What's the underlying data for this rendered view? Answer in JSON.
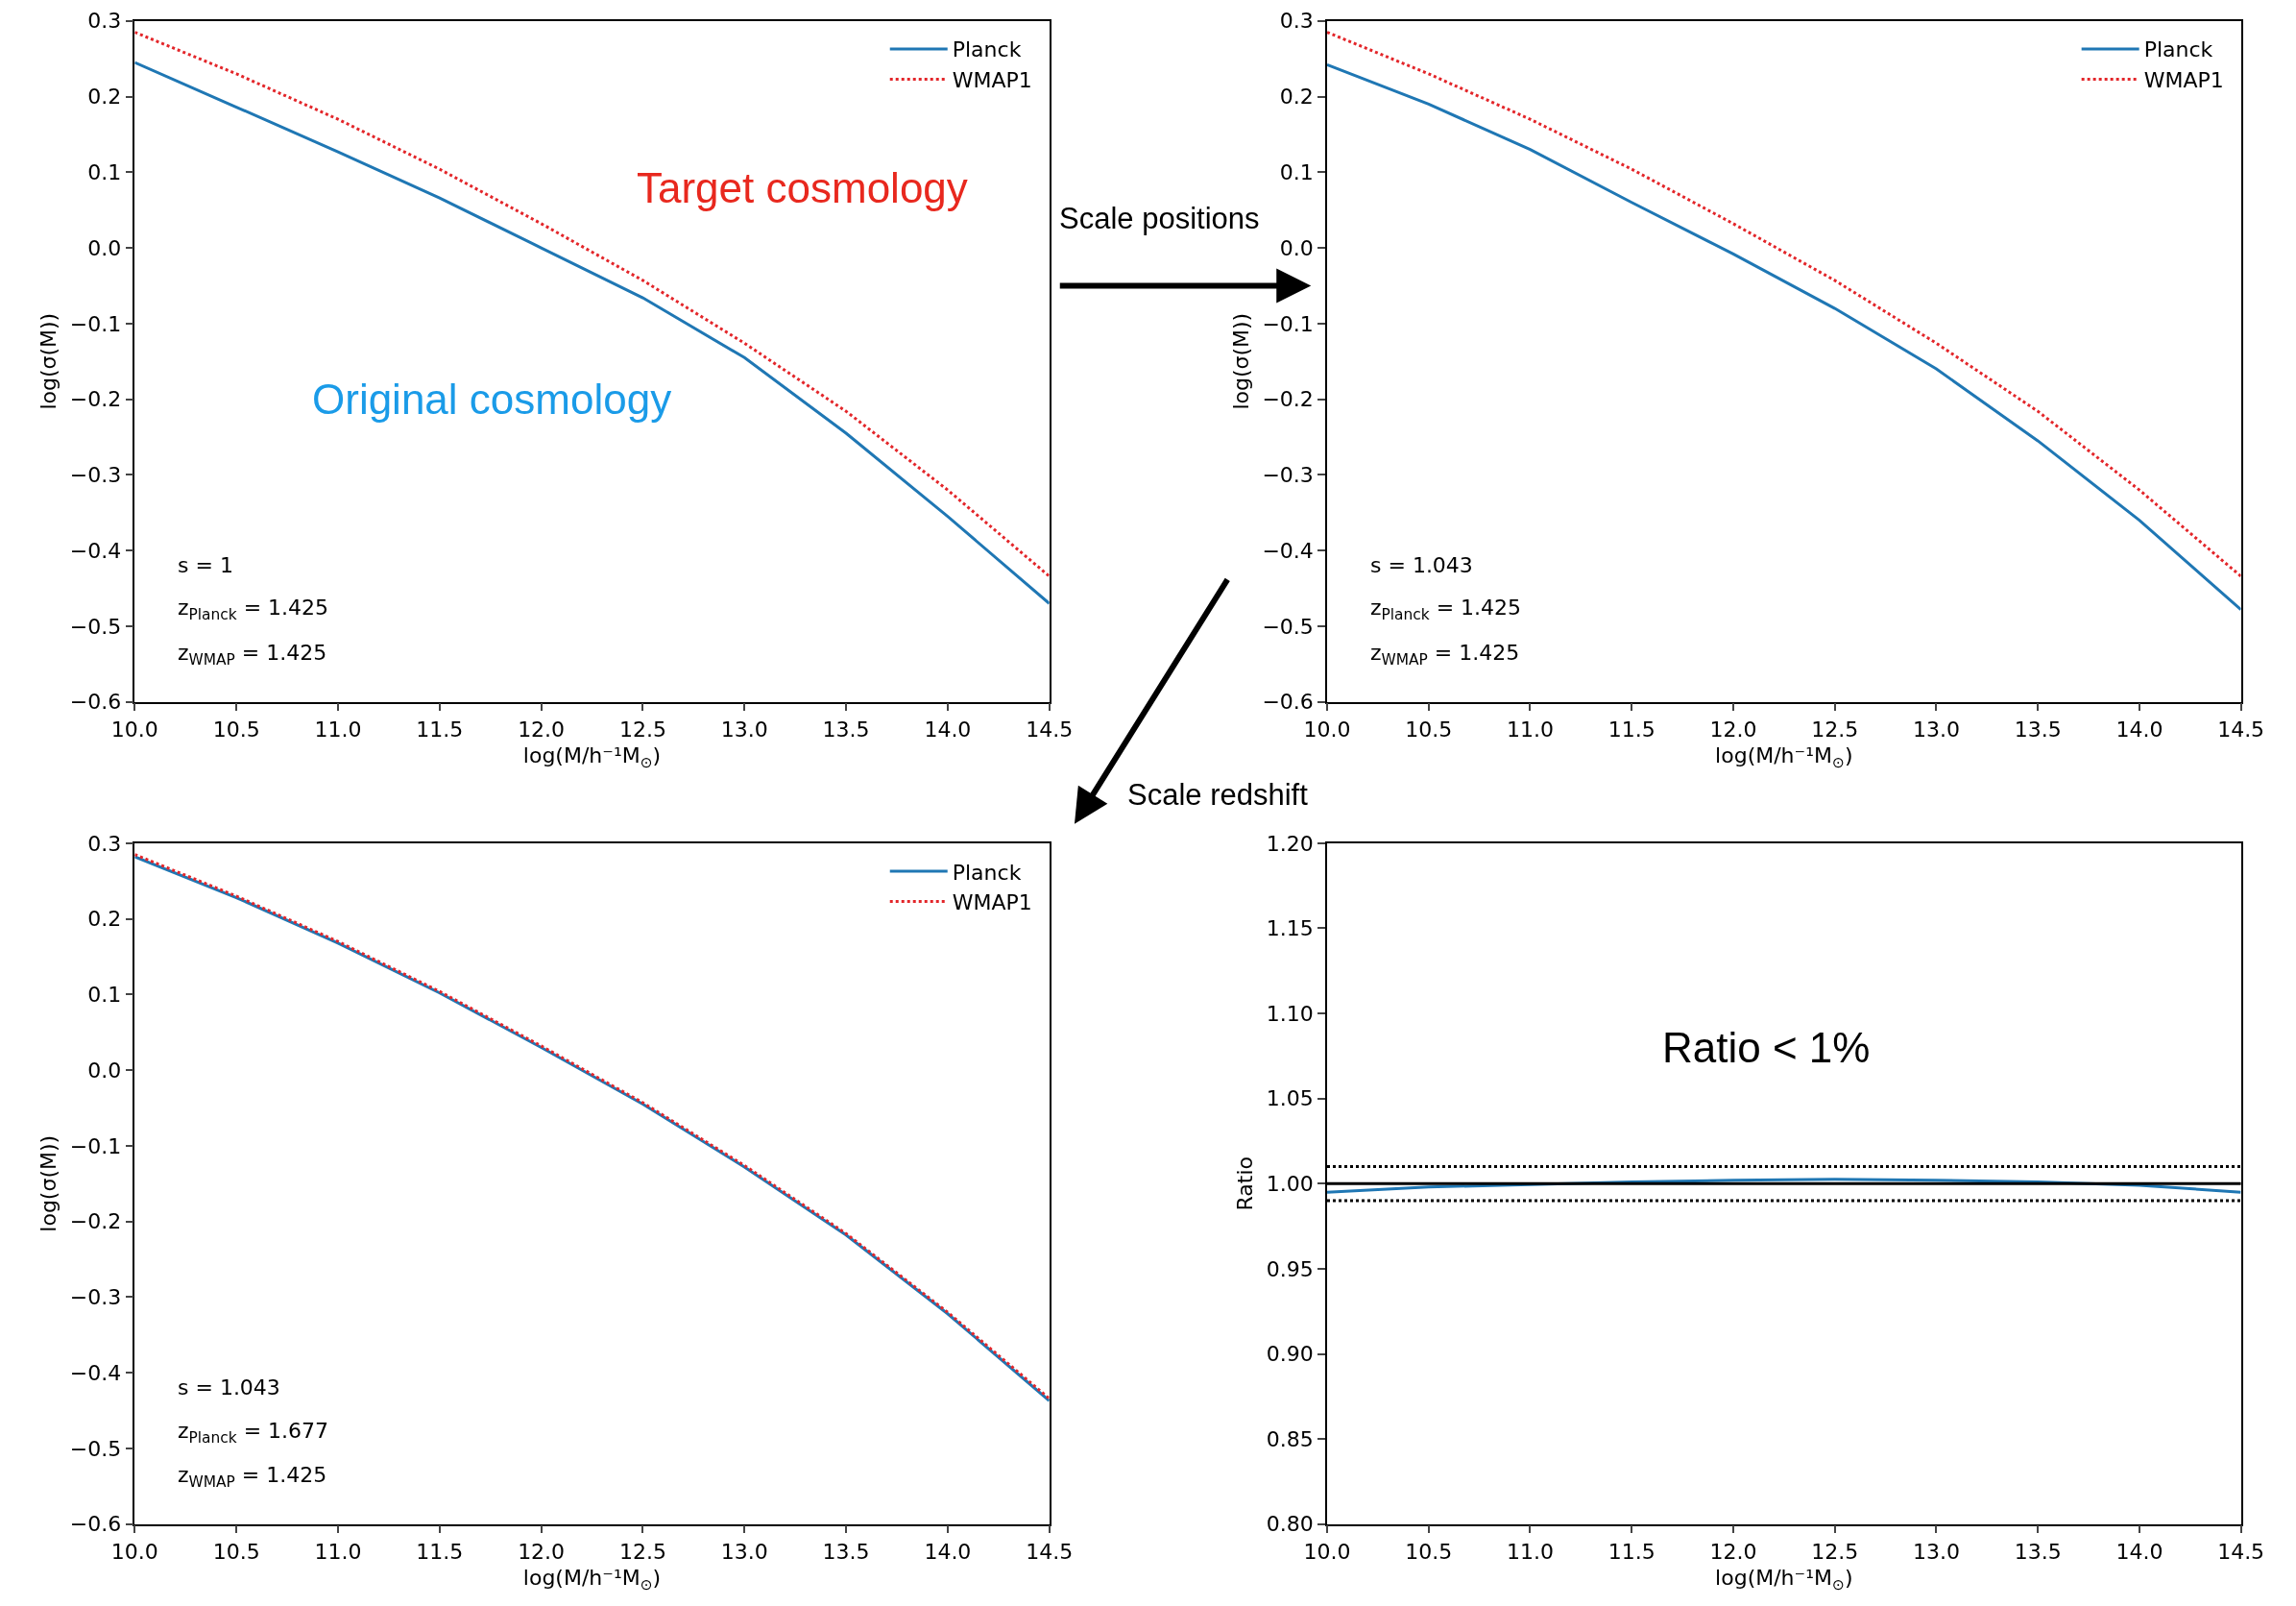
{
  "chart_data": [
    {
      "type": "line",
      "xlabel": "log(M/h⁻¹M$_{⊙}$)",
      "ylabel": "log(σ(M))",
      "x": [
        10.0,
        10.5,
        11.0,
        11.5,
        12.0,
        12.5,
        13.0,
        13.5,
        14.0,
        14.5
      ],
      "series": [
        {
          "name": "Planck",
          "color": "#1f77b4",
          "line_style": "solid",
          "values": [
            0.245,
            0.186,
            0.127,
            0.066,
            0.0,
            -0.066,
            -0.145,
            -0.245,
            -0.355,
            -0.47
          ]
        },
        {
          "name": "WMAP1",
          "color": "#e3262a",
          "line_style": "dotted",
          "values": [
            0.285,
            0.23,
            0.17,
            0.104,
            0.032,
            -0.043,
            -0.126,
            -0.216,
            -0.32,
            -0.434
          ]
        }
      ],
      "xlim": [
        10.0,
        14.5
      ],
      "ylim": [
        -0.6,
        0.3
      ],
      "xticks": [
        {
          "value": 10,
          "label": "10.0"
        },
        10.5,
        {
          "value": 11,
          "label": "11.0"
        },
        11.5,
        {
          "value": 12,
          "label": "12.0"
        },
        12.5,
        {
          "value": 13,
          "label": "13.0"
        },
        13.5,
        {
          "value": 14,
          "label": "14.0"
        },
        14.5
      ],
      "yticks": [
        {
          "value": -0.6,
          "label": "−0.6"
        },
        {
          "value": -0.5,
          "label": "−0.5"
        },
        {
          "value": -0.4,
          "label": "−0.4"
        },
        {
          "value": -0.3,
          "label": "−0.3"
        },
        {
          "value": -0.2,
          "label": "−0.2"
        },
        {
          "value": -0.1,
          "label": "−0.1"
        },
        {
          "value": 0,
          "label": "0.0"
        },
        0.1,
        0.2,
        0.3
      ],
      "grid": false,
      "legend": "top right",
      "annotations": [
        "s = 1",
        "z$_{Planck}$ = 1.425",
        "z$_{WMAP}$ = 1.425",
        "Target cosmology",
        "Original cosmology",
        "Scale positions"
      ]
    },
    {
      "type": "line",
      "xlabel": "log(M/h⁻¹M$_{⊙}$)",
      "ylabel": "log(σ(M))",
      "x": [
        10.0,
        10.5,
        11.0,
        11.5,
        12.0,
        12.5,
        13.0,
        13.5,
        14.0,
        14.5
      ],
      "series": [
        {
          "name": "Planck",
          "color": "#1f77b4",
          "line_style": "solid",
          "values": [
            0.242,
            0.19,
            0.13,
            0.06,
            -0.008,
            -0.08,
            -0.16,
            -0.255,
            -0.36,
            -0.478
          ]
        },
        {
          "name": "WMAP1",
          "color": "#e3262a",
          "line_style": "dotted",
          "values": [
            0.285,
            0.23,
            0.17,
            0.104,
            0.032,
            -0.043,
            -0.126,
            -0.216,
            -0.32,
            -0.434
          ]
        }
      ],
      "xlim": [
        10.0,
        14.5
      ],
      "ylim": [
        -0.6,
        0.3
      ],
      "xticks": [
        {
          "value": 10,
          "label": "10.0"
        },
        10.5,
        {
          "value": 11,
          "label": "11.0"
        },
        11.5,
        {
          "value": 12,
          "label": "12.0"
        },
        12.5,
        {
          "value": 13,
          "label": "13.0"
        },
        13.5,
        {
          "value": 14,
          "label": "14.0"
        },
        14.5
      ],
      "yticks": [
        {
          "value": -0.6,
          "label": "−0.6"
        },
        {
          "value": -0.5,
          "label": "−0.5"
        },
        {
          "value": -0.4,
          "label": "−0.4"
        },
        {
          "value": -0.3,
          "label": "−0.3"
        },
        {
          "value": -0.2,
          "label": "−0.2"
        },
        {
          "value": -0.1,
          "label": "−0.1"
        },
        {
          "value": 0,
          "label": "0.0"
        },
        0.1,
        0.2,
        0.3
      ],
      "grid": false,
      "legend": "top right",
      "annotations": [
        "s = 1.043",
        "z$_{Planck}$ = 1.425",
        "z$_{WMAP}$ = 1.425",
        "Scale redshift"
      ]
    },
    {
      "type": "line",
      "xlabel": "log(M/h⁻¹M$_{⊙}$)",
      "ylabel": "log(σ(M))",
      "x": [
        10.0,
        10.5,
        11.0,
        11.5,
        12.0,
        12.5,
        13.0,
        13.5,
        14.0,
        14.5
      ],
      "series": [
        {
          "name": "Planck",
          "color": "#1f77b4",
          "line_style": "solid",
          "values": [
            0.282,
            0.228,
            0.168,
            0.102,
            0.03,
            -0.045,
            -0.128,
            -0.218,
            -0.322,
            -0.437
          ]
        },
        {
          "name": "WMAP1",
          "color": "#e3262a",
          "line_style": "dotted",
          "values": [
            0.285,
            0.23,
            0.17,
            0.104,
            0.032,
            -0.043,
            -0.126,
            -0.216,
            -0.32,
            -0.434
          ]
        }
      ],
      "xlim": [
        10.0,
        14.5
      ],
      "ylim": [
        -0.6,
        0.3
      ],
      "xticks": [
        {
          "value": 10,
          "label": "10.0"
        },
        10.5,
        {
          "value": 11,
          "label": "11.0"
        },
        11.5,
        {
          "value": 12,
          "label": "12.0"
        },
        12.5,
        {
          "value": 13,
          "label": "13.0"
        },
        13.5,
        {
          "value": 14,
          "label": "14.0"
        },
        14.5
      ],
      "yticks": [
        {
          "value": -0.6,
          "label": "−0.6"
        },
        {
          "value": -0.5,
          "label": "−0.5"
        },
        {
          "value": -0.4,
          "label": "−0.4"
        },
        {
          "value": -0.3,
          "label": "−0.3"
        },
        {
          "value": -0.2,
          "label": "−0.2"
        },
        {
          "value": -0.1,
          "label": "−0.1"
        },
        {
          "value": 0,
          "label": "0.0"
        },
        0.1,
        0.2,
        0.3
      ],
      "grid": false,
      "legend": "top right",
      "annotations": [
        "s = 1.043",
        "z$_{Planck}$ = 1.677",
        "z$_{WMAP}$ = 1.425"
      ]
    },
    {
      "type": "line",
      "xlabel": "log(M/h⁻¹M$_{⊙}$)",
      "ylabel": "Ratio",
      "x": [
        10.0,
        10.5,
        11.0,
        11.5,
        12.0,
        12.5,
        13.0,
        13.5,
        14.0,
        14.5
      ],
      "series": [
        {
          "color": "#1f77b4",
          "line_style": "solid",
          "values": [
            0.995,
            0.998,
            0.9995,
            1.001,
            1.002,
            1.0025,
            1.002,
            1.001,
            0.999,
            0.995
          ]
        }
      ],
      "ref_lines": [
        {
          "axis": "y",
          "value": 1.0,
          "color": "#000000",
          "line_style": "solid"
        },
        {
          "axis": "y",
          "value": 1.01,
          "color": "#000000",
          "line_style": "dotted"
        },
        {
          "axis": "y",
          "value": 0.99,
          "color": "#000000",
          "line_style": "dotted"
        }
      ],
      "xlim": [
        10.0,
        14.5
      ],
      "ylim": [
        0.8,
        1.2
      ],
      "xticks": [
        {
          "value": 10,
          "label": "10.0"
        },
        10.5,
        {
          "value": 11,
          "label": "11.0"
        },
        11.5,
        {
          "value": 12,
          "label": "12.0"
        },
        12.5,
        {
          "value": 13,
          "label": "13.0"
        },
        13.5,
        {
          "value": 14,
          "label": "14.0"
        },
        14.5
      ],
      "yticks": [
        {
          "value": 0.8,
          "label": "0.80"
        },
        0.85,
        {
          "value": 0.9,
          "label": "0.90"
        },
        0.95,
        {
          "value": 1.0,
          "label": "1.00"
        },
        1.05,
        {
          "value": 1.1,
          "label": "1.10"
        },
        1.15,
        {
          "value": 1.2,
          "label": "1.20"
        }
      ],
      "grid": false,
      "annotations": [
        "Ratio < 1%"
      ]
    }
  ]
}
